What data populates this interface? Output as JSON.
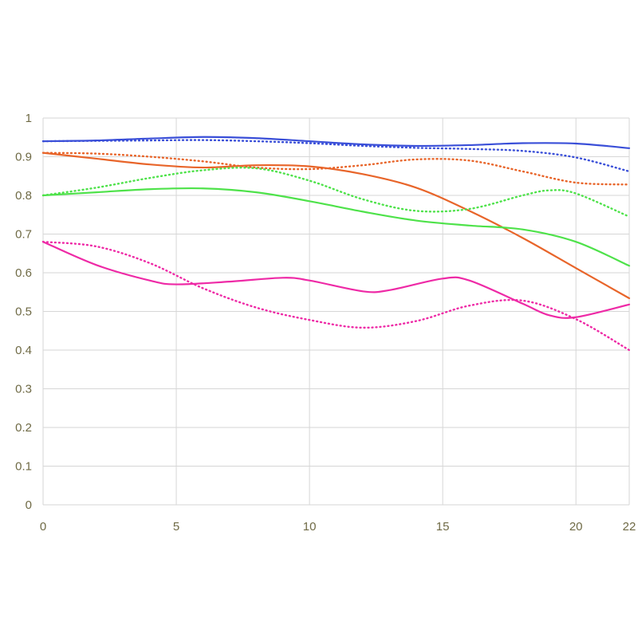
{
  "chart_data": {
    "type": "line",
    "xlim": [
      0,
      22
    ],
    "ylim": [
      0,
      1
    ],
    "x_ticks": [
      0,
      5,
      10,
      15,
      20,
      22
    ],
    "y_ticks": [
      0,
      0.1,
      0.2,
      0.3,
      0.4,
      0.5,
      0.6,
      0.7,
      0.8,
      0.9,
      1
    ],
    "x_tick_labels": [
      "0",
      "5",
      "10",
      "15",
      "20",
      "22"
    ],
    "y_tick_labels": [
      "0",
      "0.1",
      "0.2",
      "0.3",
      "0.4",
      "0.5",
      "0.6",
      "0.7",
      "0.8",
      "0.9",
      "1"
    ],
    "grid": true,
    "legend": "none",
    "series": [
      {
        "color": "#3a4fd8",
        "style": "solid",
        "x": [
          0,
          2,
          4,
          6,
          8,
          10,
          12,
          14,
          16,
          18,
          20,
          22
        ],
        "y": [
          0.94,
          0.942,
          0.947,
          0.951,
          0.948,
          0.94,
          0.932,
          0.928,
          0.93,
          0.935,
          0.934,
          0.922
        ]
      },
      {
        "color": "#3a4fd8",
        "style": "dotted",
        "x": [
          0,
          2,
          4,
          6,
          8,
          10,
          12,
          14,
          16,
          18,
          20,
          22
        ],
        "y": [
          0.94,
          0.941,
          0.942,
          0.943,
          0.94,
          0.935,
          0.928,
          0.923,
          0.92,
          0.915,
          0.898,
          0.862
        ]
      },
      {
        "color": "#e8652a",
        "style": "solid",
        "x": [
          0,
          2,
          4,
          6,
          8,
          10,
          12,
          14,
          16,
          18,
          20,
          22
        ],
        "y": [
          0.91,
          0.895,
          0.88,
          0.872,
          0.878,
          0.875,
          0.855,
          0.82,
          0.76,
          0.69,
          0.612,
          0.534
        ]
      },
      {
        "color": "#e8652a",
        "style": "dotted",
        "x": [
          0,
          2,
          4,
          6,
          8,
          10,
          12,
          14,
          16,
          18,
          20,
          22
        ],
        "y": [
          0.91,
          0.908,
          0.9,
          0.888,
          0.872,
          0.868,
          0.878,
          0.893,
          0.89,
          0.862,
          0.833,
          0.828
        ]
      },
      {
        "color": "#4ee24a",
        "style": "solid",
        "x": [
          0,
          2,
          4,
          6,
          8,
          10,
          12,
          14,
          16,
          18,
          20,
          22
        ],
        "y": [
          0.8,
          0.808,
          0.816,
          0.818,
          0.808,
          0.785,
          0.758,
          0.735,
          0.722,
          0.712,
          0.68,
          0.618
        ]
      },
      {
        "color": "#4ee24a",
        "style": "dotted",
        "x": [
          0,
          2,
          4,
          6,
          8,
          10,
          12,
          14,
          16,
          18,
          19,
          20,
          22
        ],
        "y": [
          0.8,
          0.82,
          0.845,
          0.865,
          0.87,
          0.838,
          0.79,
          0.76,
          0.765,
          0.8,
          0.813,
          0.805,
          0.745
        ]
      },
      {
        "color": "#ee2aa6",
        "style": "solid",
        "x": [
          0,
          2,
          4,
          5,
          7,
          9,
          10,
          12,
          13,
          15,
          16,
          18,
          19,
          20,
          22
        ],
        "y": [
          0.68,
          0.62,
          0.58,
          0.57,
          0.577,
          0.587,
          0.58,
          0.552,
          0.555,
          0.585,
          0.58,
          0.52,
          0.49,
          0.485,
          0.518
        ]
      },
      {
        "color": "#ee2aa6",
        "style": "dotted",
        "x": [
          0,
          2,
          4,
          6,
          8,
          10,
          12,
          14,
          16,
          18,
          20,
          22
        ],
        "y": [
          0.68,
          0.668,
          0.625,
          0.56,
          0.51,
          0.478,
          0.458,
          0.475,
          0.515,
          0.528,
          0.48,
          0.4
        ]
      }
    ]
  }
}
